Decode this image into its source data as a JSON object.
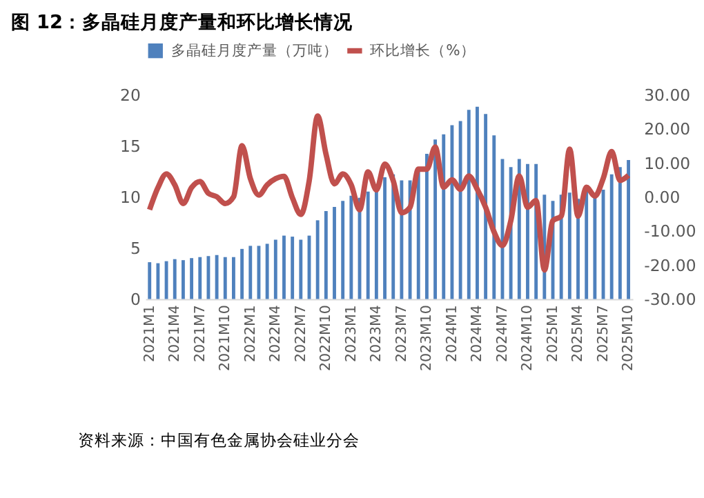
{
  "chart_data": {
    "type": "bar",
    "title": "图 12：多晶硅月度产量和环比增长情况",
    "annotations": [
      "资料来源：中国有色金属协会硅业分会"
    ],
    "categories": [
      "2021M1",
      null,
      null,
      "2021M4",
      null,
      null,
      "2021M7",
      null,
      null,
      "2021M10",
      null,
      null,
      "2022M1",
      null,
      null,
      "2022M4",
      null,
      null,
      "2022M7",
      null,
      null,
      "2022M10",
      null,
      null,
      "2023M1",
      null,
      null,
      "2023M4",
      null,
      null,
      "2023M7",
      null,
      null,
      "2023M10",
      null,
      null,
      "2024M1",
      null,
      null,
      "2024M4",
      null,
      null,
      "2024M7",
      null,
      null,
      "2024M10",
      null,
      null,
      "2025M1",
      null,
      null,
      "2025M4",
      null,
      null,
      "2025M7",
      null,
      null,
      "2025M10"
    ],
    "series": [
      {
        "name": "多晶硅月度产量（万吨）",
        "color": "#4f81bd",
        "values": [
          3.6,
          3.5,
          3.7,
          3.9,
          3.8,
          4.0,
          4.1,
          4.2,
          4.3,
          4.1,
          4.1,
          4.9,
          5.2,
          5.2,
          5.4,
          5.8,
          6.2,
          6.1,
          5.8,
          6.2,
          7.7,
          8.6,
          9.0,
          9.6,
          10.1,
          9.9,
          10.5,
          10.8,
          11.9,
          12.2,
          11.6,
          11.6,
          12.9,
          14.2,
          15.6,
          16.1,
          17.0,
          17.4,
          18.5,
          18.8,
          18.1,
          16.0,
          13.7,
          12.9,
          13.7,
          13.2,
          13.2,
          10.2,
          9.6,
          10.2,
          10.4,
          9.8,
          10.9,
          10.0,
          10.7,
          12.2,
          12.9,
          13.6
        ]
      },
      {
        "name": "环比增长（%）",
        "type": "line",
        "axis": "y2",
        "color": "#c0504d",
        "values": [
          -3.8,
          2.7,
          6.7,
          3.5,
          -2.0,
          2.7,
          4.5,
          1.0,
          0,
          -2.0,
          0,
          15.0,
          5.3,
          0.5,
          3.5,
          5.3,
          6.0,
          -0.3,
          -5.2,
          4.7,
          23.7,
          12.5,
          3.8,
          6.7,
          3.5,
          -3.8,
          7.3,
          2.0,
          9.6,
          4.7,
          -4.7,
          -3.1,
          8.1,
          8.1,
          14.6,
          2.8,
          5.0,
          2.2,
          6.1,
          2.2,
          -3.1,
          -10.3,
          -14.3,
          -7.0,
          6.1,
          -3.1,
          -1.1,
          -21.5,
          -7.0,
          -5.7,
          14.0,
          -5.7,
          2.8,
          0.2,
          5.4,
          13.3,
          4.8,
          6.3
        ]
      }
    ],
    "ylim": [
      0,
      20
    ],
    "yticks": [
      0,
      5,
      10,
      15,
      20
    ],
    "y2lim": [
      -30,
      30
    ],
    "y2ticks": [
      {
        "value": -30,
        "label": "-30.00"
      },
      {
        "value": -20,
        "label": "-20.00"
      },
      {
        "value": -10,
        "label": "-10.00"
      },
      {
        "value": 0,
        "label": "0.00"
      },
      {
        "value": 10,
        "label": "10.00"
      },
      {
        "value": 20,
        "label": "20.00"
      },
      {
        "value": 30,
        "label": "30.00"
      }
    ],
    "legend": "top",
    "marker": "none",
    "line_style": "solid"
  }
}
